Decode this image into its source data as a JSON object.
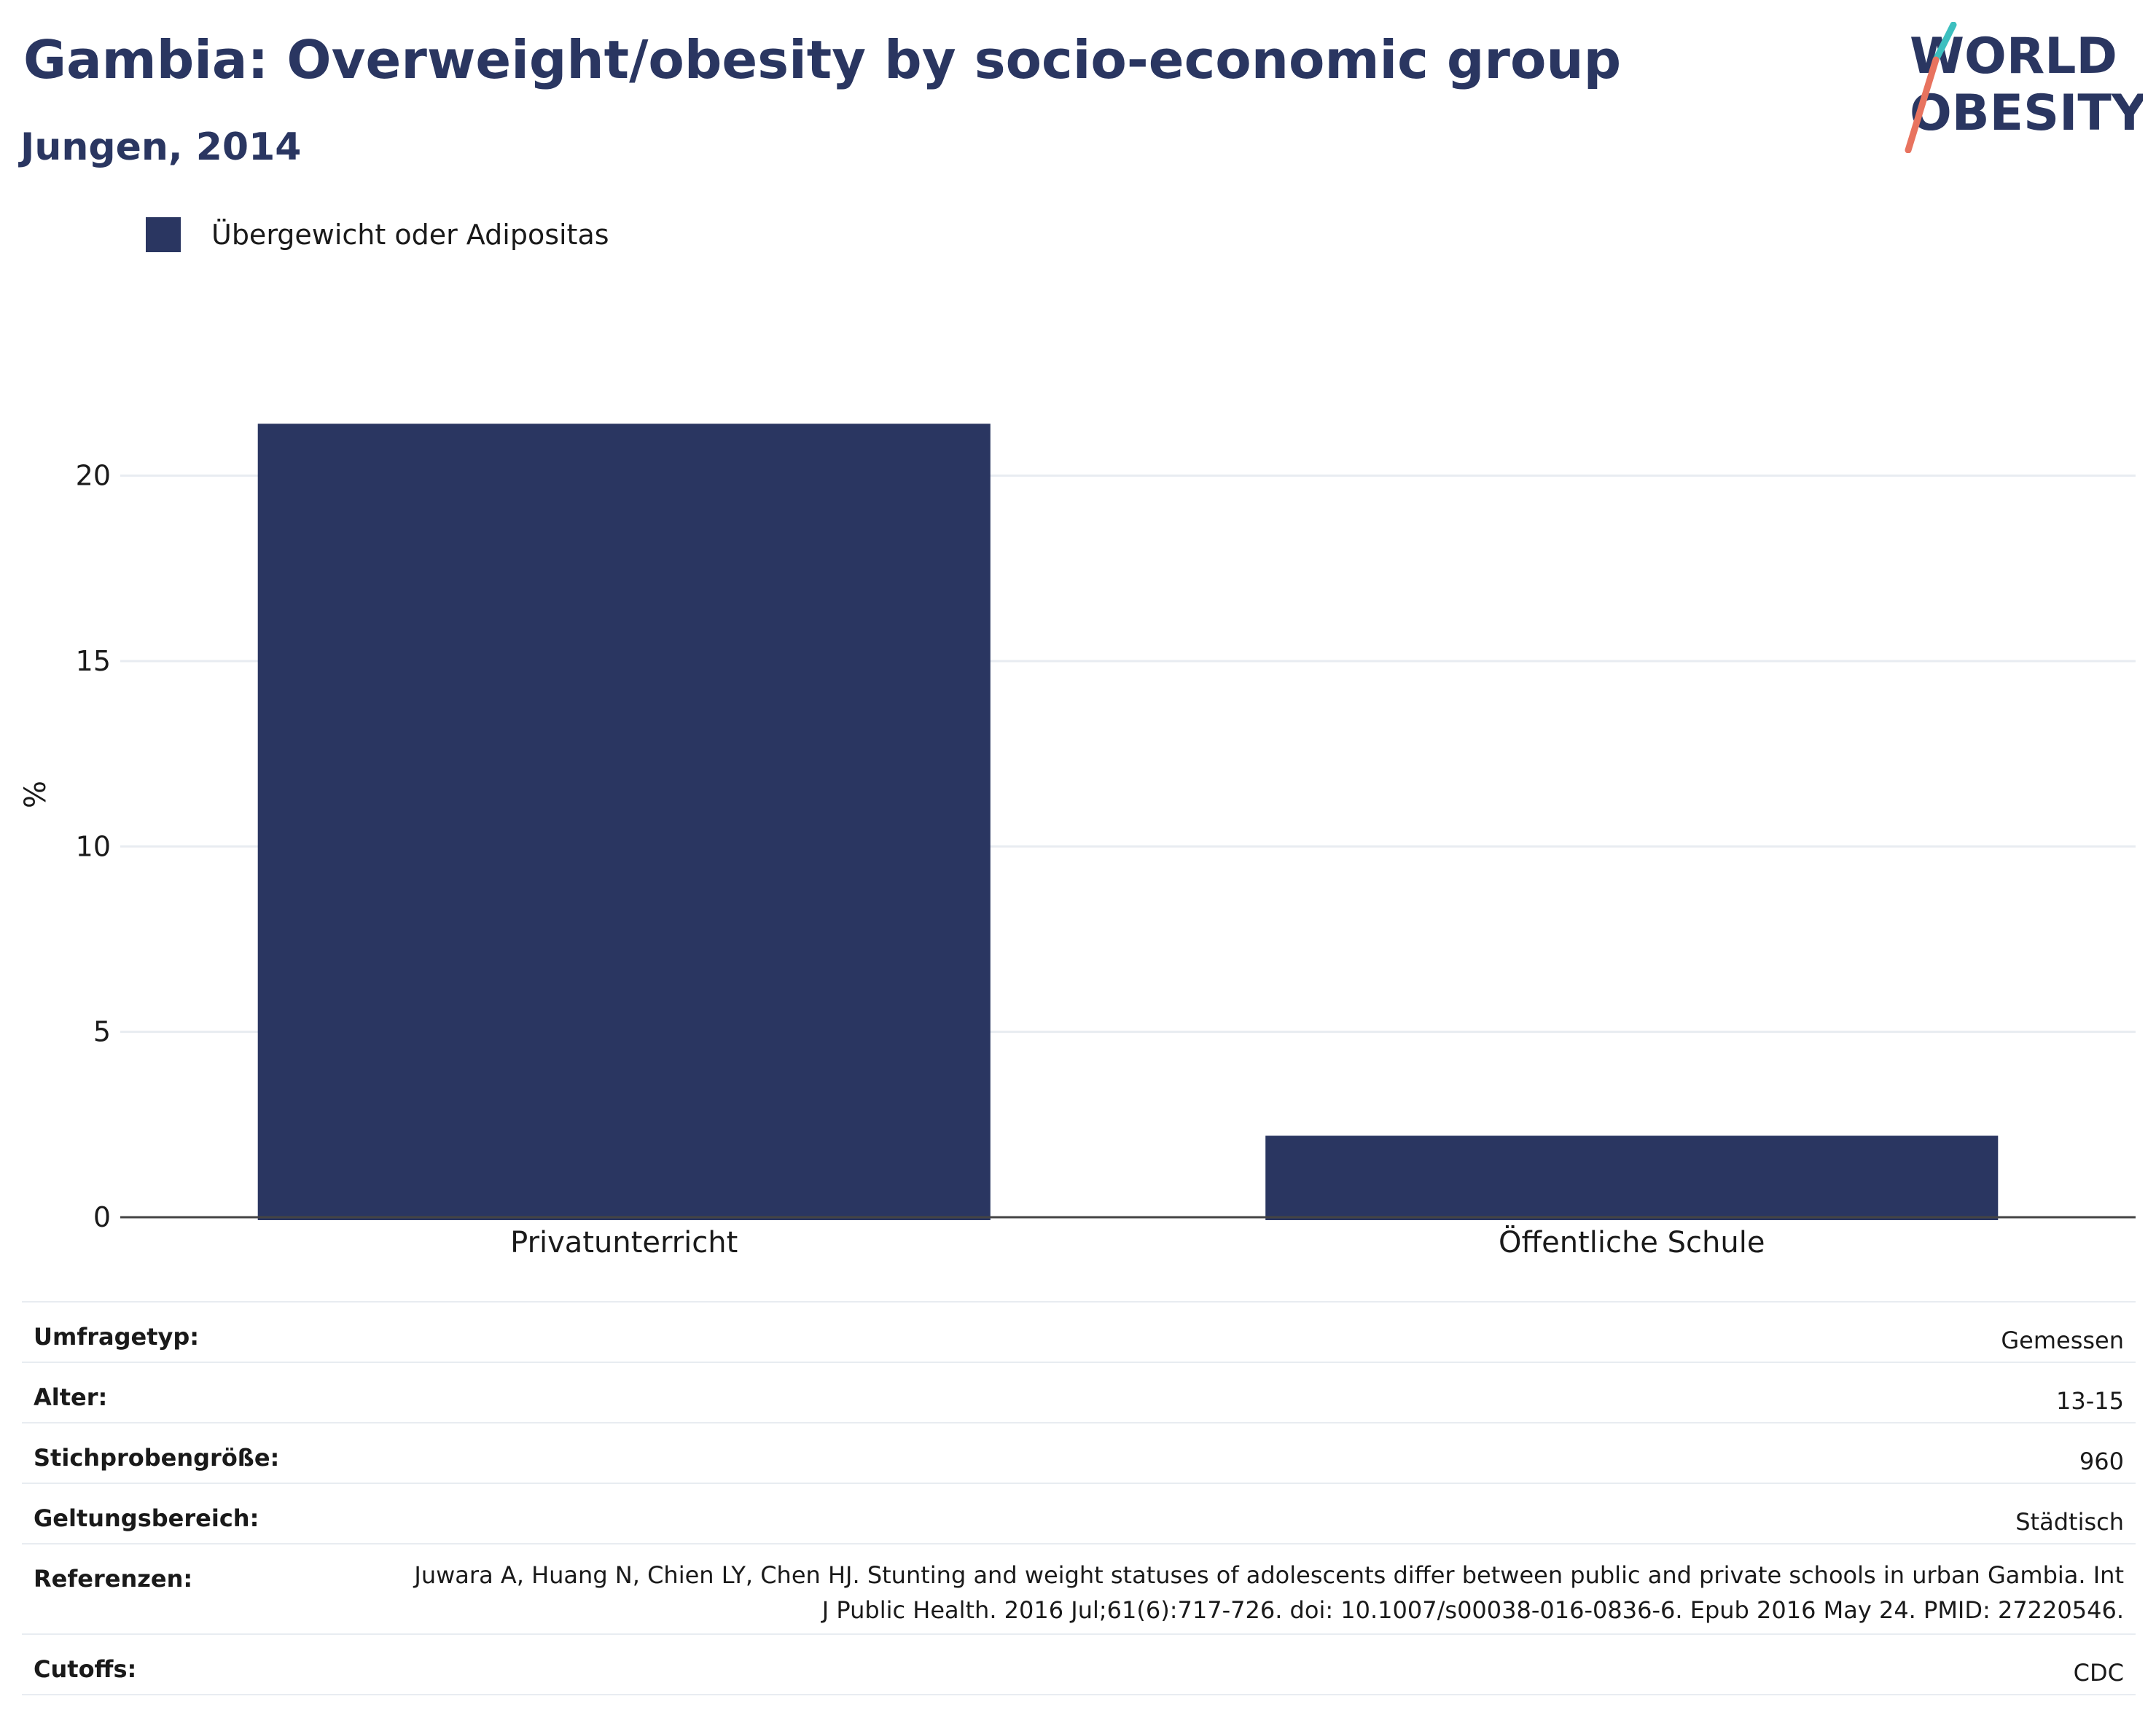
{
  "header": {
    "title": "Gambia: Overweight/obesity by socio-economic group",
    "subtitle": "Jungen, 2014"
  },
  "logo": {
    "line1": "WORLD",
    "line2": "OBESITY"
  },
  "colors": {
    "bar": "#2a3661",
    "title": "#2a3661",
    "logo_teal": "#3cbfbf",
    "logo_coral": "#e8735f"
  },
  "chart_data": {
    "type": "bar",
    "categories": [
      "Privatunterricht",
      "Öffentliche Schule"
    ],
    "series": [
      {
        "name": "Übergewicht oder Adipositas",
        "values": [
          21.4,
          2.2
        ]
      }
    ],
    "ylabel": "%",
    "xlabel": "",
    "ylim": [
      0,
      23
    ],
    "yticks": [
      0,
      5,
      10,
      15,
      20
    ],
    "grid": true,
    "legend_position": "top-left"
  },
  "info": [
    {
      "key": "Umfragetyp:",
      "value": "Gemessen"
    },
    {
      "key": "Alter:",
      "value": "13-15"
    },
    {
      "key": "Stichprobengröße:",
      "value": "960"
    },
    {
      "key": "Geltungsbereich:",
      "value": "Städtisch"
    },
    {
      "key": "Referenzen:",
      "value": "Juwara A, Huang N, Chien LY, Chen HJ. Stunting and weight statuses of adolescents differ between public and private schools in urban Gambia. Int J Public Health. 2016 Jul;61(6):717-726. doi: 10.1007/s00038-016-0836-6. Epub 2016 May 24. PMID: 27220546."
    },
    {
      "key": "Cutoffs:",
      "value": "CDC"
    }
  ]
}
